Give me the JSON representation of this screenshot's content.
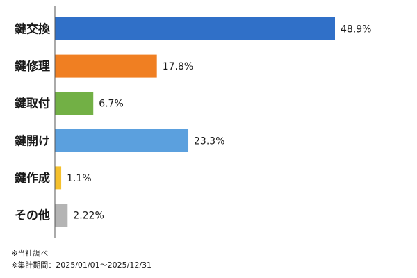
{
  "chart_data": {
    "type": "bar",
    "orientation": "horizontal",
    "categories": [
      "鍵交換",
      "鍵修理",
      "鍵取付",
      "鍵開け",
      "鍵作成",
      "その他"
    ],
    "values": [
      48.9,
      17.8,
      6.7,
      23.3,
      1.1,
      2.22
    ],
    "value_labels": [
      "48.9%",
      "17.8%",
      "6.7%",
      "23.3%",
      "1.1%",
      "2.22%"
    ],
    "colors": [
      "#3070c8",
      "#f07f22",
      "#72b045",
      "#5ba0de",
      "#f5c02c",
      "#b4b4b4"
    ],
    "xlim": [
      0,
      60
    ],
    "grid": false,
    "legend": "none"
  },
  "notes": {
    "line1": "※当社調べ",
    "line2": "※集計期間：2025/01/01～2025/12/31"
  }
}
